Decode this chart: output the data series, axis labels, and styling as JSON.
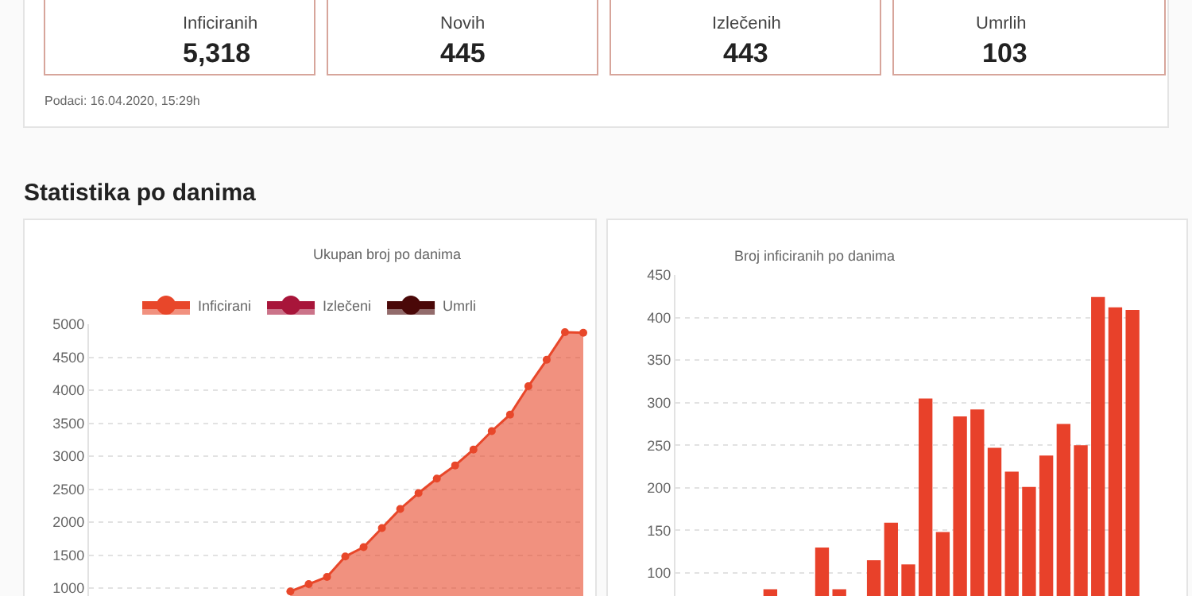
{
  "chart_data": [
    {
      "type": "other",
      "annotations": [
        "Inficiranih",
        "5,318",
        "Novih",
        "445",
        "Izlečenih",
        "443",
        "Umrlih",
        "103",
        "Podaci: 16.04.2020, 15:29h",
        "Statistika po danima"
      ]
    },
    {
      "type": "area",
      "title": "Ukupan broj po danima",
      "categories": [
        null,
        null,
        null,
        null,
        null,
        null,
        null,
        null,
        null,
        null,
        null,
        null,
        null,
        null,
        null,
        null,
        null,
        null,
        null,
        null,
        null,
        null,
        null,
        null,
        null,
        null,
        null,
        null
      ],
      "series": [
        {
          "name": "Inficirani",
          "color": "#e8472a",
          "values": [
            null,
            null,
            null,
            null,
            null,
            null,
            null,
            null,
            null,
            null,
            null,
            950,
            1060,
            1170,
            1480,
            1620,
            1910,
            2200,
            2440,
            2660,
            2860,
            3100,
            3380,
            3630,
            4060,
            4460,
            4880,
            4870
          ]
        },
        {
          "name": "Izlečeni",
          "color": "#a8153a",
          "values": [
            null,
            null,
            null,
            null,
            null,
            null,
            null,
            null,
            null,
            null,
            null,
            null,
            null,
            null,
            null,
            null,
            null,
            null,
            null,
            null,
            null,
            null,
            null,
            null,
            null,
            null,
            null,
            null
          ]
        },
        {
          "name": "Umrli",
          "color": "#4a0808",
          "values": [
            null,
            null,
            null,
            null,
            null,
            null,
            null,
            null,
            null,
            null,
            null,
            null,
            null,
            null,
            null,
            null,
            null,
            null,
            null,
            null,
            null,
            null,
            null,
            null,
            null,
            null,
            null,
            null
          ]
        }
      ],
      "ylim": [
        880,
        5000
      ],
      "yticks": [
        1000,
        1500,
        2000,
        2500,
        3000,
        3500,
        4000,
        4500,
        5000
      ],
      "grid": "y",
      "legend": "top",
      "marker": "circle",
      "tick_labels": "y"
    },
    {
      "type": "bar",
      "title": "Broj inficiranih po danima",
      "categories": [
        null,
        null,
        null,
        null,
        null,
        null,
        null,
        null,
        null,
        null,
        null,
        null,
        null,
        null,
        null,
        null,
        null,
        null,
        null,
        null,
        null,
        null,
        null,
        null,
        null,
        null,
        null
      ],
      "values": [
        null,
        null,
        null,
        null,
        null,
        81,
        null,
        null,
        130,
        81,
        null,
        115,
        159,
        110,
        305,
        148,
        284,
        292,
        247,
        219,
        201,
        238,
        275,
        250,
        424,
        412,
        409
      ],
      "color": "#e8412a",
      "ylim": [
        73,
        450
      ],
      "yticks": [
        100,
        150,
        200,
        250,
        300,
        350,
        400,
        450
      ],
      "grid": "y",
      "tick_labels": "y"
    }
  ]
}
